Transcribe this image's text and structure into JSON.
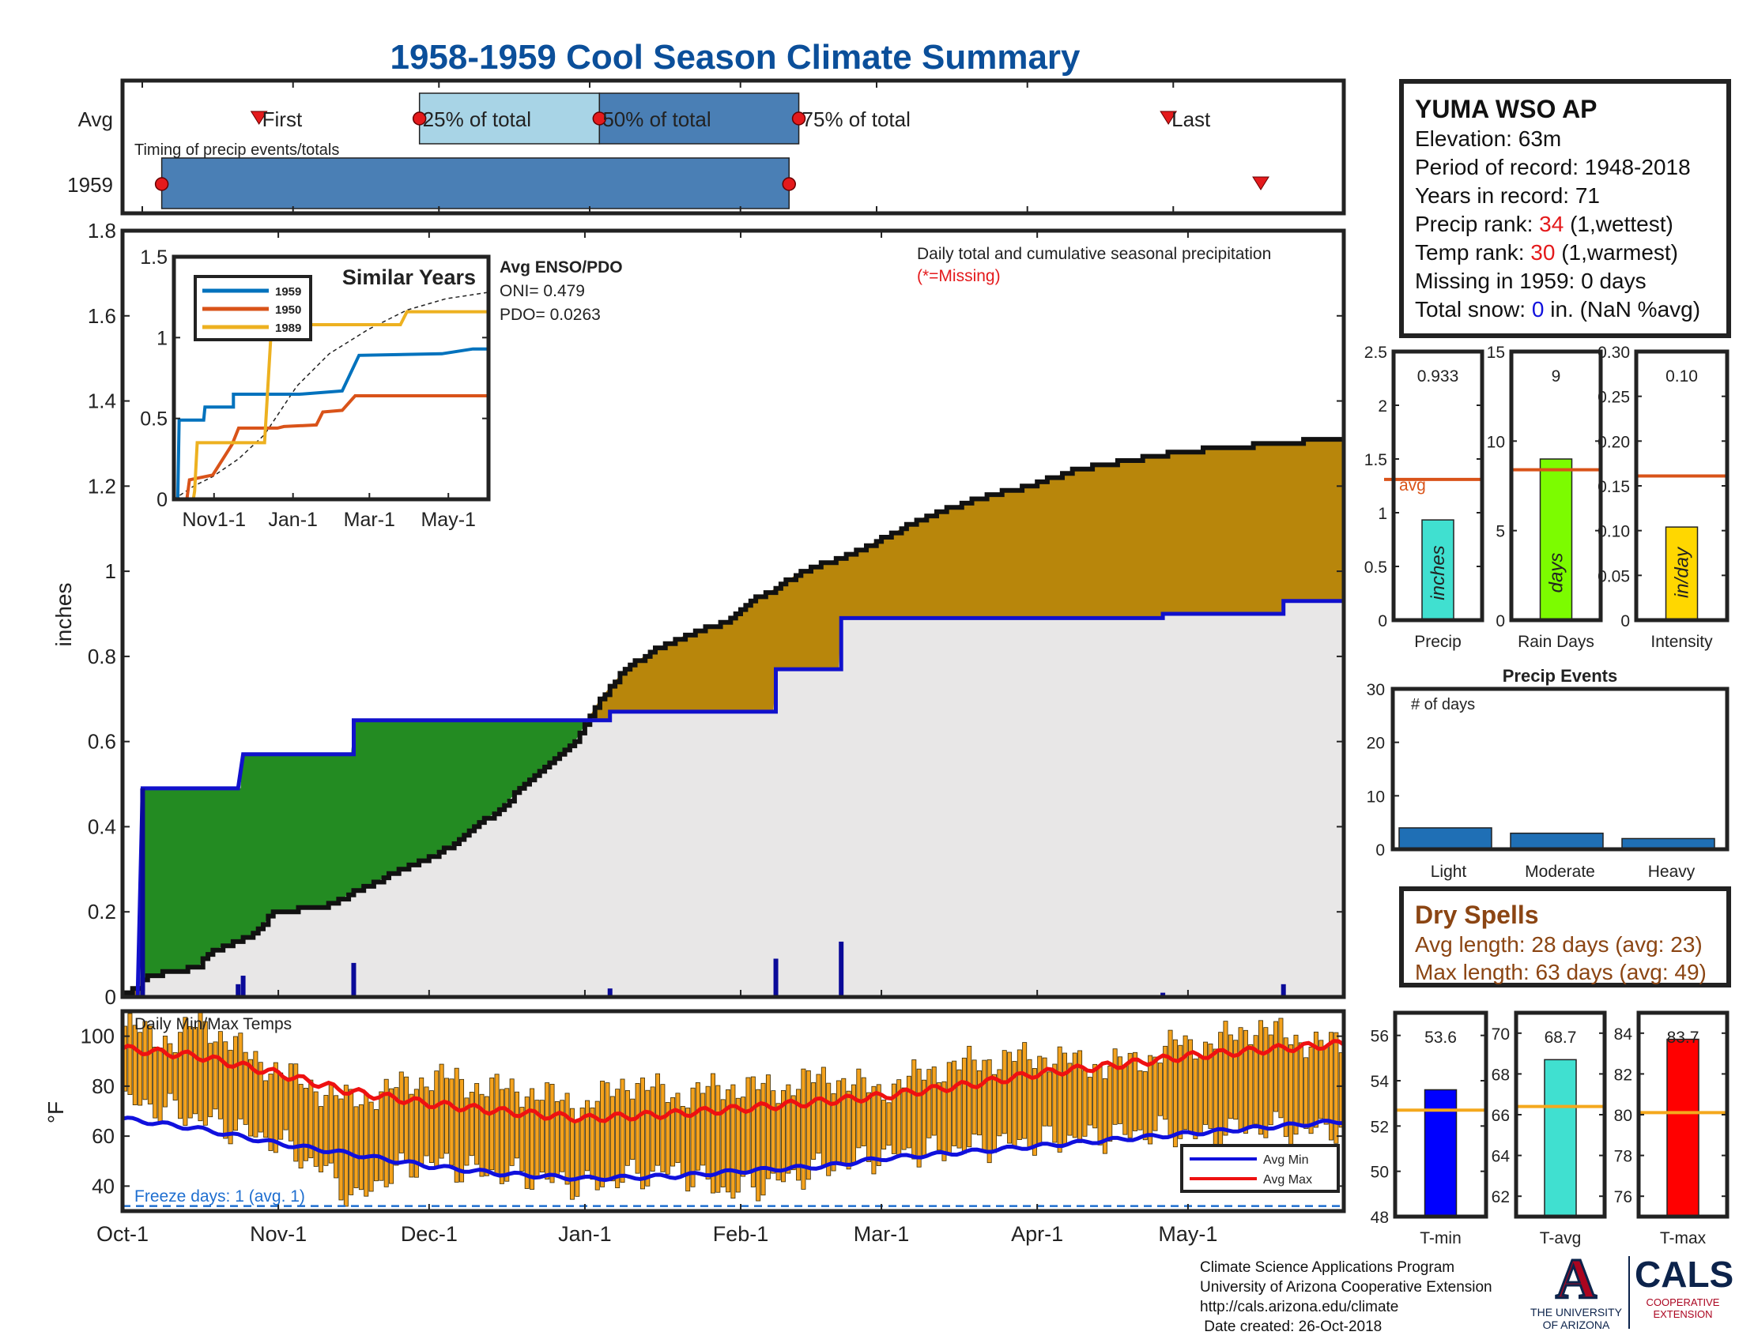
{
  "title": "1958-1959 Cool Season Climate Summary",
  "colors": {
    "title": "#0b4f9a",
    "wet": "#238b22",
    "dry": "#b8860b",
    "normal_fill": "#e8e7e7",
    "cum_line": "#1111cc",
    "daily_bar": "#0a0a99",
    "timing_light": "#a8d4e6",
    "timing_dark": "#4a7fb5",
    "red": "#e41a1c",
    "brown": "#8b4513",
    "avg_line": "#d95319",
    "temp_avg_line": "#f4a81d",
    "temp_bar": "#f4a21d",
    "year_1959": "#0072bd",
    "year_1950": "#d95319",
    "year_1989": "#edb120",
    "rain_days_bar": "#7cfc00",
    "precip_bar": "#40e0d0",
    "intensity_bar": "#ffd700",
    "events_bar": "#1f6fb5",
    "tmin_bar": "#0000ff",
    "tavg_bar": "#40e0d0",
    "tmax_bar": "#ff0000"
  },
  "timing": {
    "row_labels": [
      "Avg",
      "1959"
    ],
    "caption": "Timing of precip events/totals",
    "avg_marks": [
      {
        "label": "First",
        "day": 24
      },
      {
        "label": "25% of total",
        "day": 57
      },
      {
        "label": "50% of total",
        "day": 94
      },
      {
        "label": "75% of total",
        "day": 135
      },
      {
        "label": "Last",
        "day": 211
      }
    ],
    "year_bar": {
      "start": 4,
      "end": 133,
      "last_marker": 230
    }
  },
  "station": {
    "name": "YUMA WSO AP",
    "elevation": "Elevation: 63m",
    "period": "Period of record: 1948-2018",
    "years": "Years in record: 71",
    "precip_rank_label": "Precip rank: ",
    "precip_rank": "34",
    "precip_rank_note": " (1,wettest)",
    "temp_rank_label": "Temp rank: ",
    "temp_rank": "30",
    "temp_rank_note": " (1,warmest)",
    "missing": "Missing in 1959: 0 days",
    "snow_label": "Total snow: ",
    "snow_value": "0",
    "snow_note": " in. (NaN %avg)"
  },
  "chart_data": [
    {
      "type": "area",
      "id": "cumulative_precip",
      "ylabel": "inches",
      "ylim": [
        0,
        1.8
      ],
      "yticks": [
        0,
        0.2,
        0.4,
        0.6,
        0.8,
        1,
        1.2,
        1.4,
        1.6,
        1.8
      ],
      "xlim_days": [
        0,
        243
      ],
      "xticks": [
        {
          "day": 0,
          "label": "Oct-1"
        },
        {
          "day": 31,
          "label": "Nov-1"
        },
        {
          "day": 61,
          "label": "Dec-1"
        },
        {
          "day": 92,
          "label": "Jan-1"
        },
        {
          "day": 123,
          "label": "Feb-1"
        },
        {
          "day": 151,
          "label": "Mar-1"
        },
        {
          "day": 182,
          "label": "Apr-1"
        },
        {
          "day": 212,
          "label": "May-1"
        }
      ],
      "annotation": "Daily total and cumulative seasonal precipitation",
      "annotation2": "(*=Missing)",
      "avg_cumulative": [
        [
          0,
          0.01
        ],
        [
          3,
          0.02
        ],
        [
          5,
          0.05
        ],
        [
          10,
          0.06
        ],
        [
          15,
          0.07
        ],
        [
          17,
          0.1
        ],
        [
          20,
          0.12
        ],
        [
          25,
          0.14
        ],
        [
          28,
          0.17
        ],
        [
          30,
          0.2
        ],
        [
          40,
          0.21
        ],
        [
          45,
          0.24
        ],
        [
          52,
          0.28
        ],
        [
          60,
          0.32
        ],
        [
          66,
          0.36
        ],
        [
          70,
          0.4
        ],
        [
          75,
          0.44
        ],
        [
          80,
          0.5
        ],
        [
          85,
          0.55
        ],
        [
          90,
          0.6
        ],
        [
          95,
          0.7
        ],
        [
          100,
          0.77
        ],
        [
          105,
          0.81
        ],
        [
          112,
          0.85
        ],
        [
          120,
          0.88
        ],
        [
          125,
          0.93
        ],
        [
          130,
          0.96
        ],
        [
          135,
          1.0
        ],
        [
          140,
          1.02
        ],
        [
          145,
          1.04
        ],
        [
          150,
          1.07
        ],
        [
          155,
          1.1
        ],
        [
          160,
          1.13
        ],
        [
          170,
          1.17
        ],
        [
          180,
          1.2
        ],
        [
          190,
          1.24
        ],
        [
          200,
          1.26
        ],
        [
          210,
          1.28
        ],
        [
          220,
          1.29
        ],
        [
          230,
          1.3
        ],
        [
          240,
          1.31
        ],
        [
          243,
          1.31
        ]
      ],
      "season_cumulative": [
        [
          0,
          0
        ],
        [
          3,
          0
        ],
        [
          4,
          0.49
        ],
        [
          23,
          0.49
        ],
        [
          24,
          0.57
        ],
        [
          46,
          0.57
        ],
        [
          46,
          0.65
        ],
        [
          97,
          0.65
        ],
        [
          97,
          0.67
        ],
        [
          130,
          0.67
        ],
        [
          130,
          0.77
        ],
        [
          143,
          0.77
        ],
        [
          143,
          0.89
        ],
        [
          207,
          0.89
        ],
        [
          207,
          0.9
        ],
        [
          231,
          0.9
        ],
        [
          231,
          0.93
        ],
        [
          243,
          0.93
        ]
      ],
      "daily_bars": [
        {
          "day": 4,
          "value": 0.49
        },
        {
          "day": 23,
          "value": 0.03
        },
        {
          "day": 24,
          "value": 0.05
        },
        {
          "day": 46,
          "value": 0.08
        },
        {
          "day": 97,
          "value": 0.02
        },
        {
          "day": 130,
          "value": 0.09
        },
        {
          "day": 143,
          "value": 0.13
        },
        {
          "day": 207,
          "value": 0.01
        },
        {
          "day": 231,
          "value": 0.03
        }
      ]
    },
    {
      "type": "line",
      "id": "similar_years",
      "title": "Similar Years",
      "ylim": [
        0,
        1.5
      ],
      "yticks": [
        0,
        0.5,
        1,
        1.5
      ],
      "xticks": [
        {
          "day": 31,
          "label": "Nov1-1"
        },
        {
          "day": 92,
          "label": "Jan-1"
        },
        {
          "day": 151,
          "label": "Mar-1"
        },
        {
          "day": 212,
          "label": "May-1"
        }
      ],
      "series": [
        {
          "name": "1959",
          "points": [
            [
              0,
              0
            ],
            [
              3,
              0
            ],
            [
              4,
              0.49
            ],
            [
              23,
              0.49
            ],
            [
              24,
              0.57
            ],
            [
              46,
              0.57
            ],
            [
              46,
              0.65
            ],
            [
              97,
              0.65
            ],
            [
              130,
              0.67
            ],
            [
              143,
              0.89
            ],
            [
              207,
              0.9
            ],
            [
              231,
              0.93
            ],
            [
              243,
              0.93
            ]
          ]
        },
        {
          "name": "1950",
          "points": [
            [
              0,
              0
            ],
            [
              10,
              0
            ],
            [
              12,
              0.12
            ],
            [
              30,
              0.15
            ],
            [
              45,
              0.34
            ],
            [
              50,
              0.44
            ],
            [
              80,
              0.44
            ],
            [
              85,
              0.45
            ],
            [
              110,
              0.46
            ],
            [
              115,
              0.54
            ],
            [
              130,
              0.55
            ],
            [
              140,
              0.64
            ],
            [
              243,
              0.64
            ]
          ]
        },
        {
          "name": "1989",
          "points": [
            [
              0,
              0
            ],
            [
              15,
              0
            ],
            [
              16,
              0.05
            ],
            [
              18,
              0.35
            ],
            [
              70,
              0.35
            ],
            [
              75,
              1.02
            ],
            [
              100,
              1.02
            ],
            [
              105,
              1.08
            ],
            [
              175,
              1.08
            ],
            [
              180,
              1.16
            ],
            [
              243,
              1.16
            ]
          ]
        }
      ],
      "avg": [
        [
          0,
          0
        ],
        [
          15,
          0.08
        ],
        [
          30,
          0.14
        ],
        [
          50,
          0.25
        ],
        [
          70,
          0.4
        ],
        [
          95,
          0.7
        ],
        [
          120,
          0.9
        ],
        [
          150,
          1.05
        ],
        [
          180,
          1.17
        ],
        [
          210,
          1.24
        ],
        [
          243,
          1.28
        ]
      ]
    },
    {
      "type": "bar",
      "id": "daily_temps",
      "title": "Daily Min/Max Temps",
      "ylabel": "°F",
      "ylim": [
        30,
        110
      ],
      "yticks": [
        40,
        60,
        80,
        100
      ],
      "freeze_line": 32,
      "freeze_text": "Freeze days: 1 (avg. 1)",
      "legend": [
        "Avg Min",
        "Avg Max"
      ],
      "avg_min": [
        [
          0,
          67
        ],
        [
          15,
          63
        ],
        [
          31,
          57
        ],
        [
          45,
          53
        ],
        [
          61,
          48
        ],
        [
          75,
          45
        ],
        [
          92,
          43
        ],
        [
          110,
          44
        ],
        [
          123,
          46
        ],
        [
          140,
          48
        ],
        [
          151,
          51
        ],
        [
          170,
          54
        ],
        [
          182,
          56
        ],
        [
          200,
          59
        ],
        [
          212,
          61
        ],
        [
          230,
          64
        ],
        [
          243,
          66
        ]
      ],
      "avg_max": [
        [
          0,
          95
        ],
        [
          15,
          92
        ],
        [
          31,
          85
        ],
        [
          45,
          78
        ],
        [
          61,
          73
        ],
        [
          75,
          70
        ],
        [
          92,
          67
        ],
        [
          110,
          69
        ],
        [
          123,
          71
        ],
        [
          140,
          74
        ],
        [
          151,
          76
        ],
        [
          170,
          81
        ],
        [
          182,
          85
        ],
        [
          200,
          89
        ],
        [
          212,
          92
        ],
        [
          230,
          95
        ],
        [
          243,
          97
        ]
      ],
      "daily_max_anchors": [
        [
          0,
          104
        ],
        [
          10,
          98
        ],
        [
          15,
          106
        ],
        [
          25,
          92
        ],
        [
          35,
          82
        ],
        [
          45,
          74
        ],
        [
          55,
          80
        ],
        [
          62,
          84
        ],
        [
          70,
          80
        ],
        [
          80,
          78
        ],
        [
          92,
          72
        ],
        [
          100,
          82
        ],
        [
          110,
          76
        ],
        [
          120,
          80
        ],
        [
          130,
          79
        ],
        [
          140,
          84
        ],
        [
          150,
          78
        ],
        [
          160,
          86
        ],
        [
          170,
          90
        ],
        [
          182,
          92
        ],
        [
          195,
          88
        ],
        [
          205,
          92
        ],
        [
          210,
          98
        ],
        [
          215,
          96
        ],
        [
          225,
          104
        ],
        [
          235,
          98
        ],
        [
          243,
          96
        ]
      ],
      "daily_min_anchors": [
        [
          0,
          74
        ],
        [
          10,
          70
        ],
        [
          20,
          64
        ],
        [
          30,
          58
        ],
        [
          40,
          46
        ],
        [
          46,
          34
        ],
        [
          52,
          44
        ],
        [
          60,
          50
        ],
        [
          70,
          46
        ],
        [
          80,
          44
        ],
        [
          92,
          40
        ],
        [
          100,
          44
        ],
        [
          110,
          46
        ],
        [
          120,
          38
        ],
        [
          130,
          42
        ],
        [
          140,
          48
        ],
        [
          150,
          52
        ],
        [
          160,
          54
        ],
        [
          170,
          56
        ],
        [
          182,
          58
        ],
        [
          195,
          60
        ],
        [
          205,
          62
        ],
        [
          215,
          60
        ],
        [
          225,
          64
        ],
        [
          235,
          62
        ],
        [
          243,
          64
        ]
      ]
    },
    {
      "type": "bar",
      "id": "precip_total",
      "categories": [
        "Precip"
      ],
      "values": [
        0.933
      ],
      "value_label": "0.933",
      "bar_label": "inches",
      "ylim": [
        0,
        2.5
      ],
      "yticks": [
        0,
        0.5,
        1,
        1.5,
        2,
        2.5
      ],
      "avg": 1.31,
      "avg_label": "avg"
    },
    {
      "type": "bar",
      "id": "rain_days",
      "categories": [
        "Rain Days"
      ],
      "values": [
        9
      ],
      "value_label": "9",
      "bar_label": "days",
      "ylim": [
        0,
        15
      ],
      "yticks": [
        0,
        5,
        10,
        15
      ],
      "avg": 8.4
    },
    {
      "type": "bar",
      "id": "intensity",
      "categories": [
        "Intensity"
      ],
      "values": [
        0.104
      ],
      "value_label": "0.10",
      "bar_label": "in/day",
      "ylim": [
        0,
        0.3
      ],
      "yticks": [
        0,
        0.05,
        0.1,
        0.15,
        0.2,
        0.25,
        0.3
      ],
      "avg": 0.161
    },
    {
      "type": "bar",
      "id": "precip_events",
      "title": "Precip Events",
      "annotation": "# of days",
      "categories": [
        "Light",
        "Moderate",
        "Heavy"
      ],
      "values": [
        4,
        3,
        2
      ],
      "ylim": [
        0,
        30
      ],
      "yticks": [
        0,
        10,
        20,
        30
      ]
    },
    {
      "type": "bar",
      "id": "t_min",
      "categories": [
        "T-min"
      ],
      "values": [
        53.6
      ],
      "value_label": "53.6",
      "ylim": [
        48,
        57
      ],
      "yticks": [
        48,
        50,
        52,
        54,
        56
      ],
      "avg": 52.7
    },
    {
      "type": "bar",
      "id": "t_avg",
      "categories": [
        "T-avg"
      ],
      "values": [
        68.7
      ],
      "value_label": "68.7",
      "ylim": [
        61,
        71
      ],
      "yticks": [
        62,
        64,
        66,
        68,
        70
      ],
      "avg": 66.4
    },
    {
      "type": "bar",
      "id": "t_max",
      "categories": [
        "T-max"
      ],
      "values": [
        83.7
      ],
      "value_label": "83.7",
      "ylim": [
        75,
        85
      ],
      "yticks": [
        76,
        78,
        80,
        82,
        84
      ],
      "avg": 80.1
    }
  ],
  "dry_spells": {
    "title": "Dry Spells",
    "avg_length": "Avg length: 28 days (avg: 23)",
    "max_length": "Max length: 63 days (avg: 49)"
  },
  "footer": {
    "line1": "Climate Science Applications Program",
    "line2": "University of Arizona Cooperative Extension",
    "line3": "http://cals.arizona.edu/climate",
    "line4": " Date created: 26-Oct-2018"
  },
  "logos": {
    "ua_letter": "A",
    "ua_line1": "THE UNIVERSITY",
    "ua_line2": "OF ARIZONA",
    "cals": "CALS",
    "cals_line1": "COOPERATIVE",
    "cals_line2": "EXTENSION"
  }
}
